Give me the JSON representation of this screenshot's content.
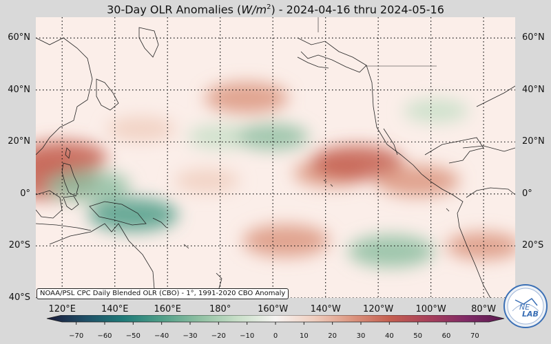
{
  "title": {
    "prefix": "30-Day OLR Anomalies (",
    "unit_base": "W/m",
    "unit_exp": "2",
    "suffix": ") - 2024-04-16 thru 2024-05-16"
  },
  "map": {
    "lat_labels": [
      "60°N",
      "40°N",
      "20°N",
      "0°",
      "20°S",
      "40°S"
    ],
    "lon_labels": [
      "120°E",
      "140°E",
      "160°E",
      "180°",
      "160°W",
      "140°W",
      "120°W",
      "100°W",
      "80°W"
    ],
    "gridline_style": "dotted",
    "extent": {
      "lon_min": 110,
      "lon_max": 292,
      "lat_min": -40,
      "lat_max": 68
    }
  },
  "credit": "NOAA/PSL CPC Daily Blended OLR (CBO) - 1°, 1991-2020 CBO Anomaly",
  "colorbar": {
    "ticks": [
      "−70",
      "−60",
      "−50",
      "−40",
      "−30",
      "−20",
      "−10",
      "0",
      "10",
      "20",
      "30",
      "40",
      "50",
      "60",
      "70"
    ],
    "range": [
      -75,
      75
    ],
    "colors": [
      "#1a1a3a",
      "#1f4e66",
      "#1f7a78",
      "#4f9e88",
      "#8fc0a2",
      "#c8dfc8",
      "#f7f4f2",
      "#f0cfc0",
      "#dc9680",
      "#c45f50",
      "#a8405a",
      "#802a66",
      "#5a1a50"
    ]
  },
  "anomaly_field": [
    {
      "lon": 115,
      "lat": 5,
      "value": 38
    },
    {
      "lon": 120,
      "lat": 14,
      "value": 32
    },
    {
      "lon": 130,
      "lat": 3,
      "value": -28
    },
    {
      "lon": 147,
      "lat": -8,
      "value": -32
    },
    {
      "lon": 150,
      "lat": 25,
      "value": 18
    },
    {
      "lon": 175,
      "lat": 5,
      "value": 16
    },
    {
      "lon": 180,
      "lat": 22,
      "value": -16
    },
    {
      "lon": 190,
      "lat": 37,
      "value": 28
    },
    {
      "lon": 200,
      "lat": 22,
      "value": -20
    },
    {
      "lon": 205,
      "lat": -18,
      "value": 30
    },
    {
      "lon": 222,
      "lat": 8,
      "value": 22
    },
    {
      "lon": 232,
      "lat": 12,
      "value": 34
    },
    {
      "lon": 245,
      "lat": -22,
      "value": -30
    },
    {
      "lon": 255,
      "lat": 5,
      "value": 28
    },
    {
      "lon": 262,
      "lat": 32,
      "value": -16
    },
    {
      "lon": 280,
      "lat": -20,
      "value": 22
    }
  ],
  "logo": {
    "text_top": "NE",
    "text_bottom": "LAB",
    "accent": "#3a6fb5"
  }
}
